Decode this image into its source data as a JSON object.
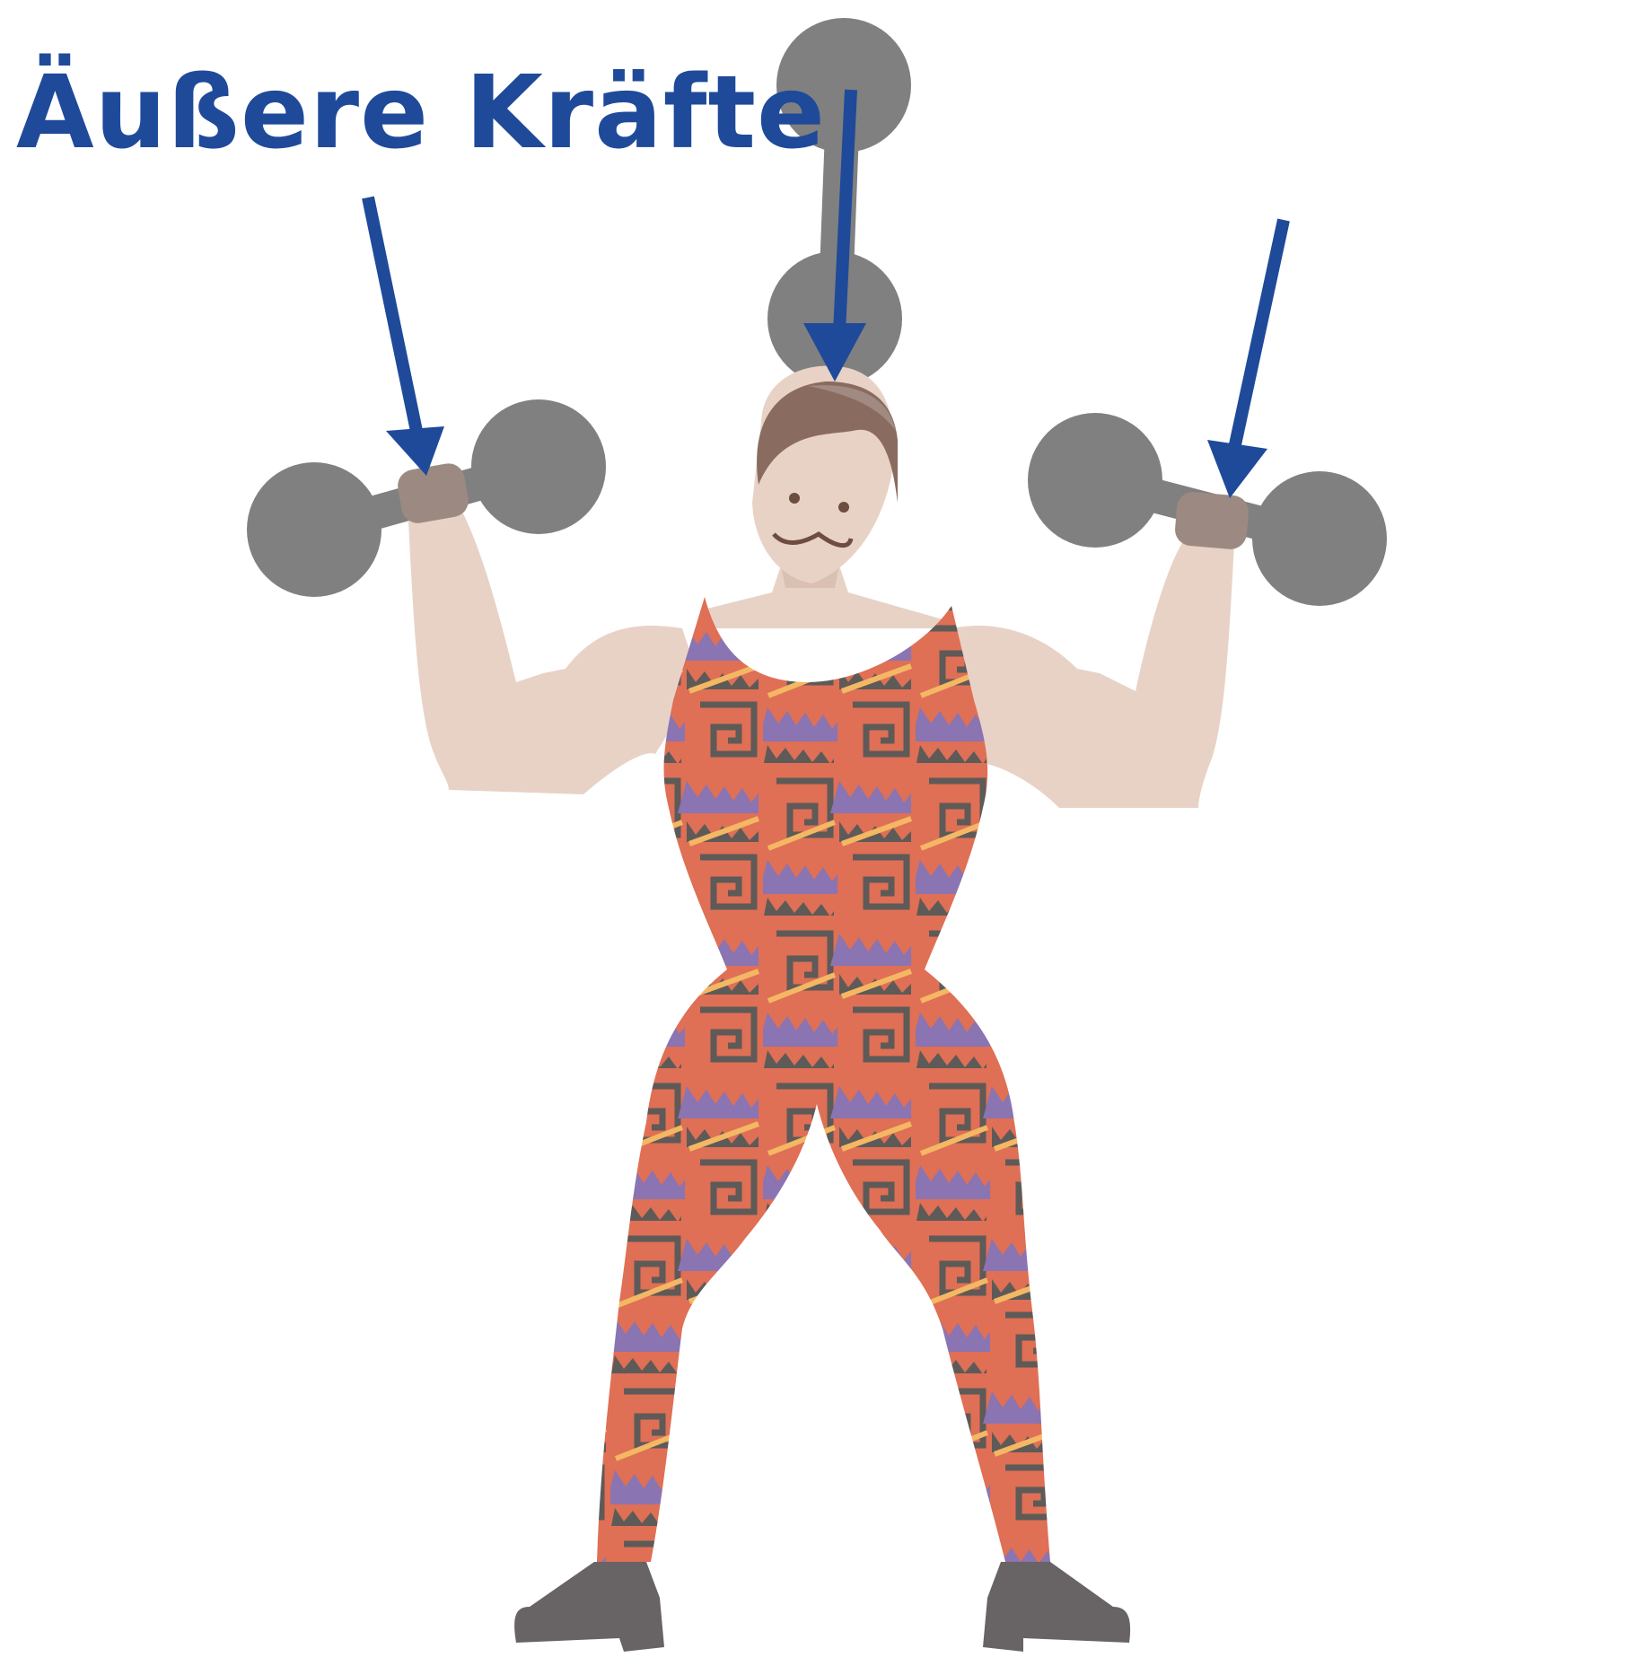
{
  "title": "Äußere Kräfte",
  "colors": {
    "title": "#1f4a9a",
    "arrow": "#1f4a9a",
    "dumbbell": "#808080",
    "skin": "#e8d2c6",
    "skin_shadow": "#d9c0b2",
    "hair": "#8a6b5f",
    "hair_light": "#a08a82",
    "suit": "#df6f55",
    "suit_pattern_dark": "#5e5a58",
    "suit_pattern_purple": "#8a74b2",
    "suit_pattern_yellow": "#f4b763",
    "boots": "#686364"
  },
  "icons": [
    "arrow-down-icon",
    "dumbbell-icon"
  ]
}
